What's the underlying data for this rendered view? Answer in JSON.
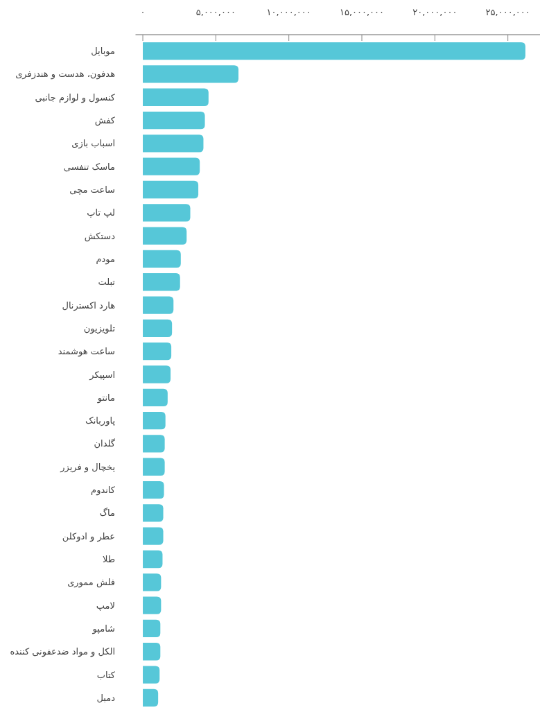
{
  "chart_data": {
    "type": "bar",
    "orientation": "horizontal",
    "color": "#56c7d8",
    "grid": false,
    "categories": [
      "موبایل",
      "هدفون، هدست و هندزفری",
      "کنسول و لوازم جانبی",
      "کفش",
      "اسباب بازی",
      "ماسک تنفسی",
      "ساعت مچی",
      "لپ تاپ",
      "دستکش",
      "مودم",
      "تبلت",
      "هارد اکسترنال",
      "تلویزیون",
      "ساعت هوشمند",
      "اسپیکر",
      "مانتو",
      "پاوربانک",
      "گلدان",
      "یخچال و فریزر",
      "کاندوم",
      "ماگ",
      "عطر و ادوکلن",
      "طلا",
      "فلش مموری",
      "لامپ",
      "شامپو",
      "الکل و مواد ضدعفونی کننده",
      "کتاب",
      "دمبل"
    ],
    "values": [
      26200000,
      6550000,
      4500000,
      4250000,
      4150000,
      3900000,
      3800000,
      3250000,
      3000000,
      2600000,
      2550000,
      2100000,
      2000000,
      1950000,
      1900000,
      1700000,
      1550000,
      1500000,
      1500000,
      1450000,
      1400000,
      1400000,
      1350000,
      1250000,
      1250000,
      1200000,
      1200000,
      1150000,
      1050000
    ],
    "xlim": [
      -500000,
      27200000
    ],
    "xticks": [
      {
        "value": 0,
        "label": "۰"
      },
      {
        "value": 5000000,
        "label": "۵,۰۰۰,۰۰۰"
      },
      {
        "value": 10000000,
        "label": "۱۰,۰۰۰,۰۰۰"
      },
      {
        "value": 15000000,
        "label": "۱۵,۰۰۰,۰۰۰"
      },
      {
        "value": 20000000,
        "label": "۲۰,۰۰۰,۰۰۰"
      },
      {
        "value": 25000000,
        "label": "۲۵,۰۰۰,۰۰۰"
      }
    ]
  }
}
